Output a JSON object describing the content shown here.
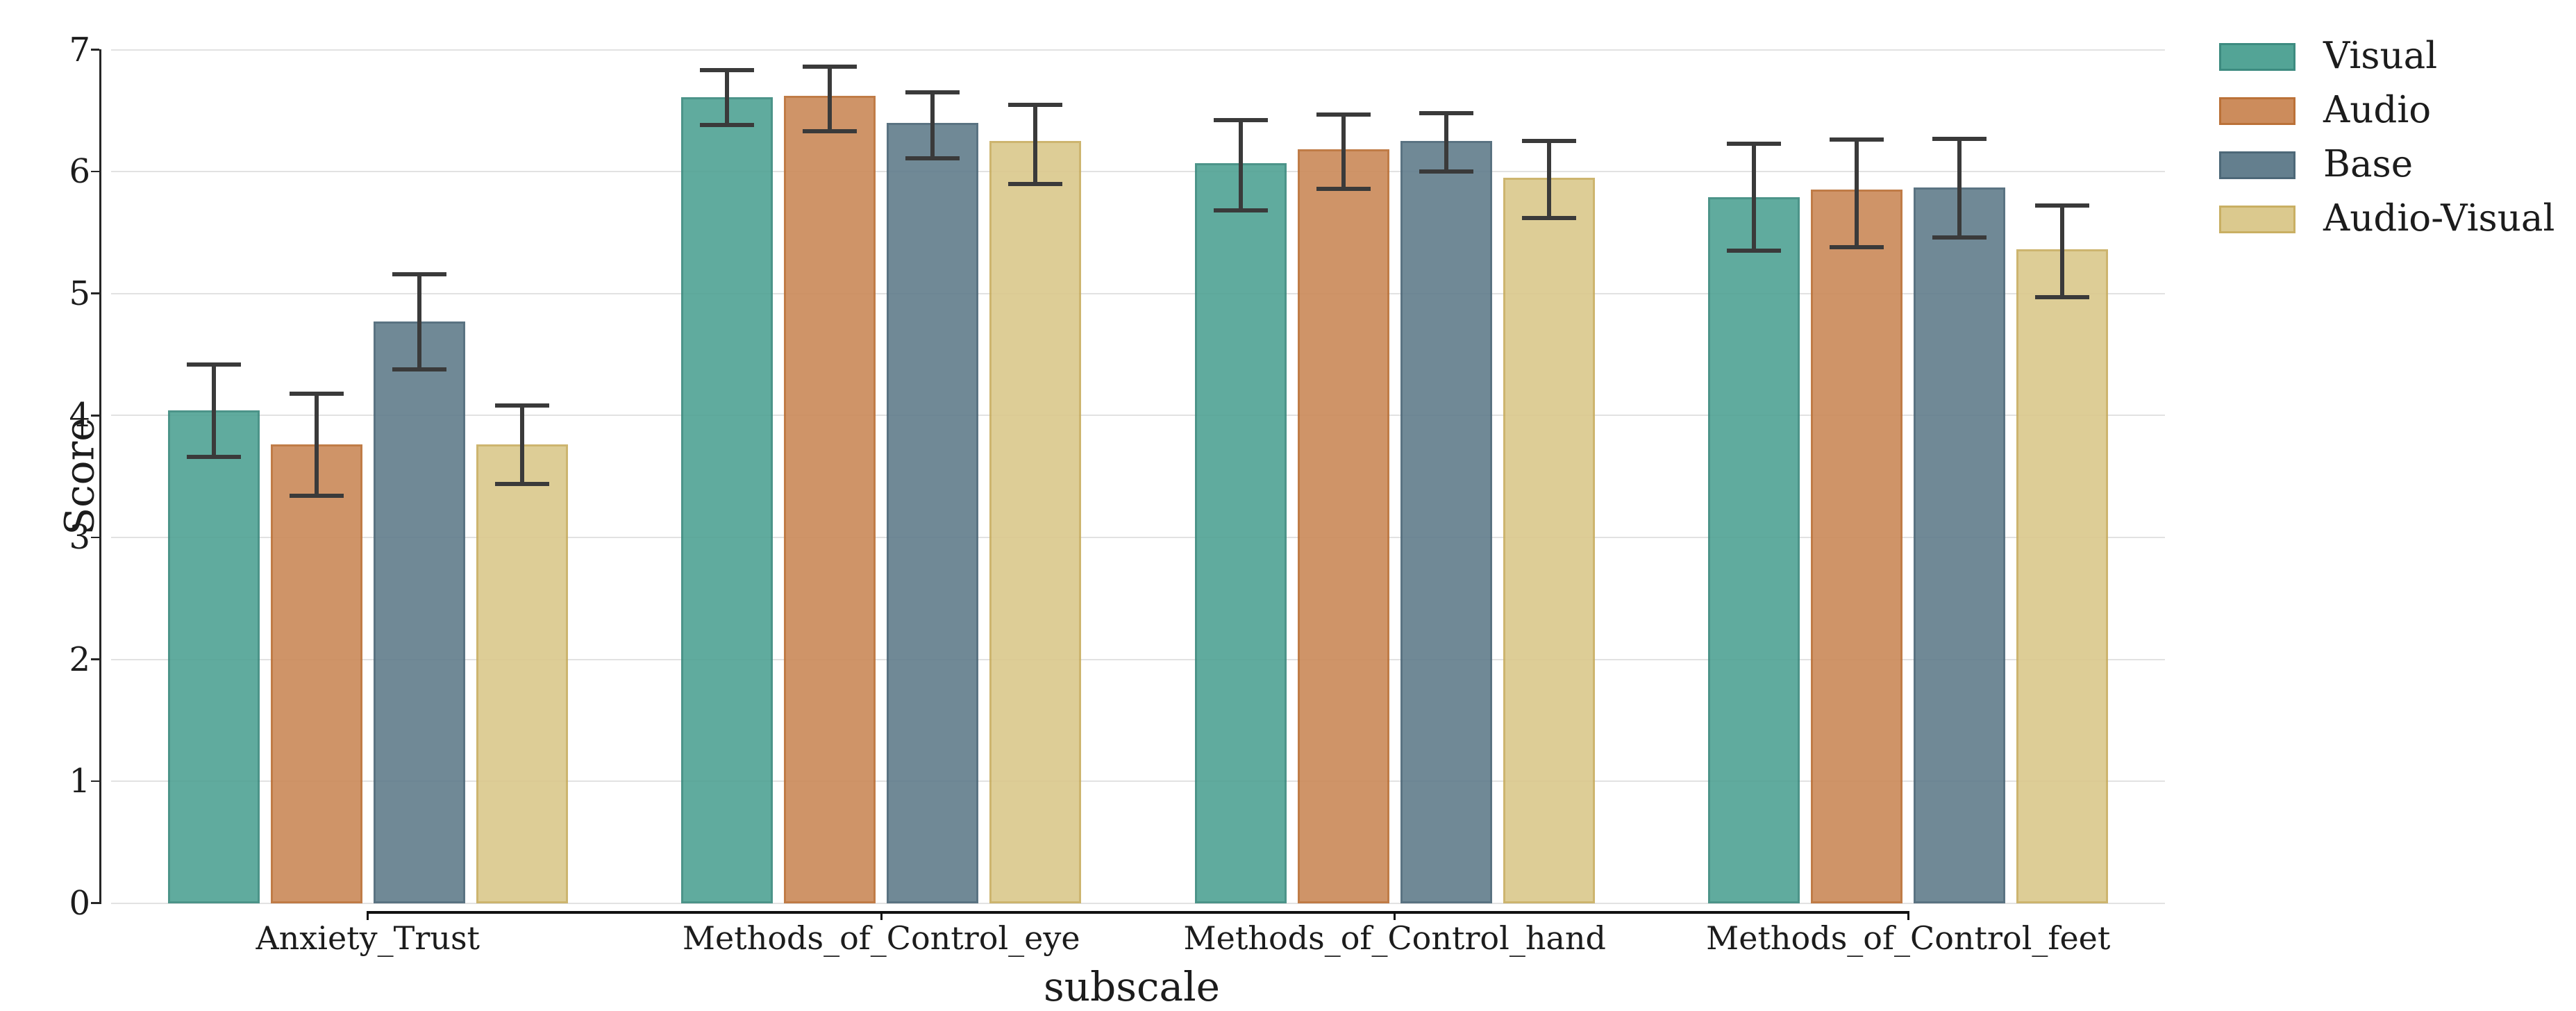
{
  "chart_data": {
    "type": "bar",
    "title": "",
    "xlabel": "subscale",
    "ylabel": "Score",
    "ylim": [
      0,
      7
    ],
    "yticks": [
      "0",
      "1",
      "2",
      "3",
      "4",
      "5",
      "6",
      "7"
    ],
    "grid": "horizontal",
    "legend_position": "outside-upper-right",
    "categories": [
      "Anxiety_Trust",
      "Methods_of_Control_eye",
      "Methods_of_Control_hand",
      "Methods_of_Control_feet"
    ],
    "series": [
      {
        "name": "Visual",
        "color": "#53a496",
        "edge_color": "#3d8b80",
        "values": [
          4.04,
          6.61,
          6.07,
          5.79
        ],
        "error_low": [
          3.66,
          6.38,
          5.68,
          5.35
        ],
        "error_high": [
          4.42,
          6.83,
          6.42,
          6.23
        ]
      },
      {
        "name": "Audio",
        "color": "#cc8c5c",
        "edge_color": "#bb7138",
        "values": [
          3.76,
          6.62,
          6.18,
          5.85
        ],
        "error_low": [
          3.34,
          6.33,
          5.86,
          5.38
        ],
        "error_high": [
          4.18,
          6.86,
          6.47,
          6.26
        ]
      },
      {
        "name": "Base",
        "color": "#647f8e",
        "edge_color": "#4d6878",
        "values": [
          4.77,
          6.4,
          6.25,
          5.87
        ],
        "error_low": [
          4.38,
          6.11,
          6.0,
          5.46
        ],
        "error_high": [
          5.16,
          6.65,
          6.48,
          6.27
        ]
      },
      {
        "name": "Audio-Visual",
        "color": "#dbc98e",
        "edge_color": "#c9af63",
        "values": [
          3.76,
          6.25,
          5.95,
          5.36
        ],
        "error_low": [
          3.44,
          5.9,
          5.62,
          4.97
        ],
        "error_high": [
          4.08,
          6.55,
          6.25,
          5.72
        ]
      }
    ],
    "error_bar_color": "#3a3a3a",
    "grid_color": "#e2e2e2",
    "spine_color": "#262626",
    "text_color": "#1c1c1c"
  }
}
